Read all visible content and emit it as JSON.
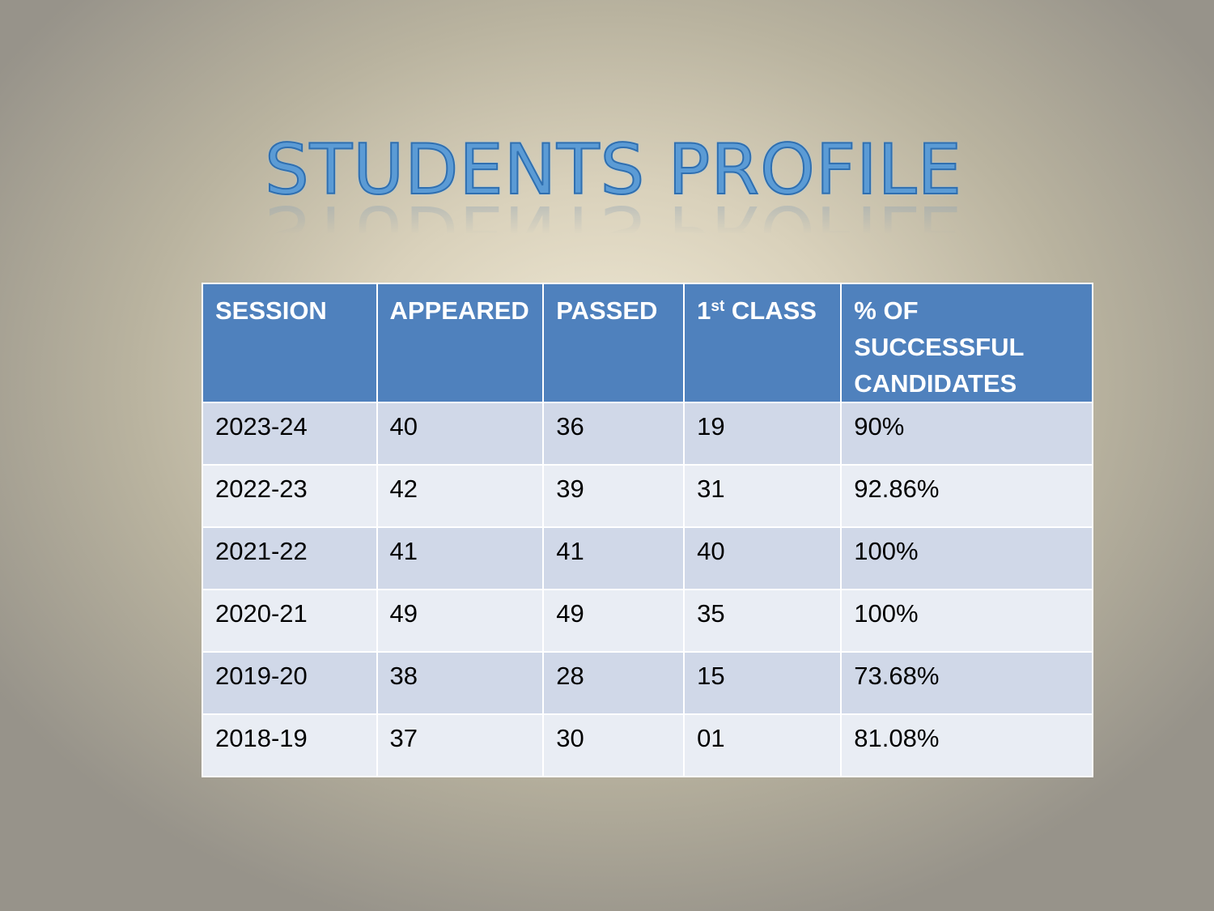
{
  "title": "STUDENTS PROFILE",
  "table": {
    "headers": [
      "SESSION",
      "APPEARED",
      "PASSED",
      "CLASS",
      "% OF SUCCESSFUL CANDIDATES"
    ],
    "first_class_prefix": "1",
    "first_class_sup": "st",
    "rows": [
      [
        "2023-24",
        "40",
        "36",
        "19",
        "90%"
      ],
      [
        "2022-23",
        "42",
        "39",
        "31",
        "92.86%"
      ],
      [
        "2021-22",
        "41",
        "41",
        "40",
        "100%"
      ],
      [
        "2020-21",
        "49",
        "49",
        "35",
        "100%"
      ],
      [
        "2019-20",
        "38",
        "28",
        "15",
        "73.68%"
      ],
      [
        "2018-19",
        "37",
        "30",
        "01",
        "81.08%"
      ]
    ]
  },
  "colors": {
    "header_bg": "#4f81bd",
    "row_odd": "#d0d8e8",
    "row_even": "#e9edf4",
    "title": "#5b9bd5"
  }
}
